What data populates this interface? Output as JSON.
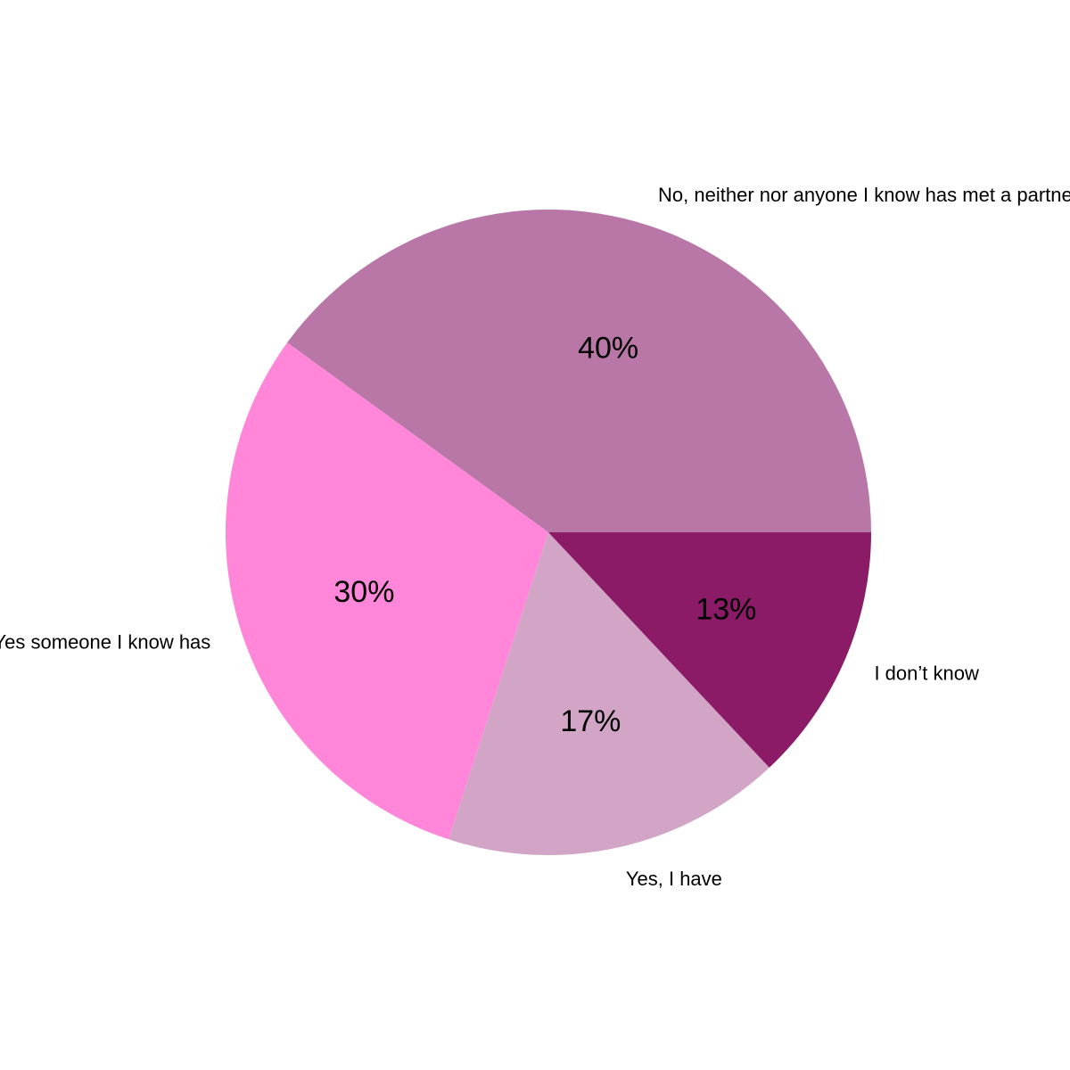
{
  "chart_data": {
    "type": "pie",
    "title": "",
    "start_angle_deg": 0,
    "direction": "counterclockwise",
    "slices": [
      {
        "label": "No, neither nor anyone I know has met a partner",
        "value": 40,
        "display": "40%",
        "color": "#b877a6"
      },
      {
        "label": "Yes someone I know has",
        "value": 30,
        "display": "30%",
        "color": "#ff86d9"
      },
      {
        "label": "Yes, I have",
        "value": 17,
        "display": "17%",
        "color": "#d2a5c7"
      },
      {
        "label": "I don’t know",
        "value": 13,
        "display": "13%",
        "color": "#8b1a67"
      }
    ]
  }
}
